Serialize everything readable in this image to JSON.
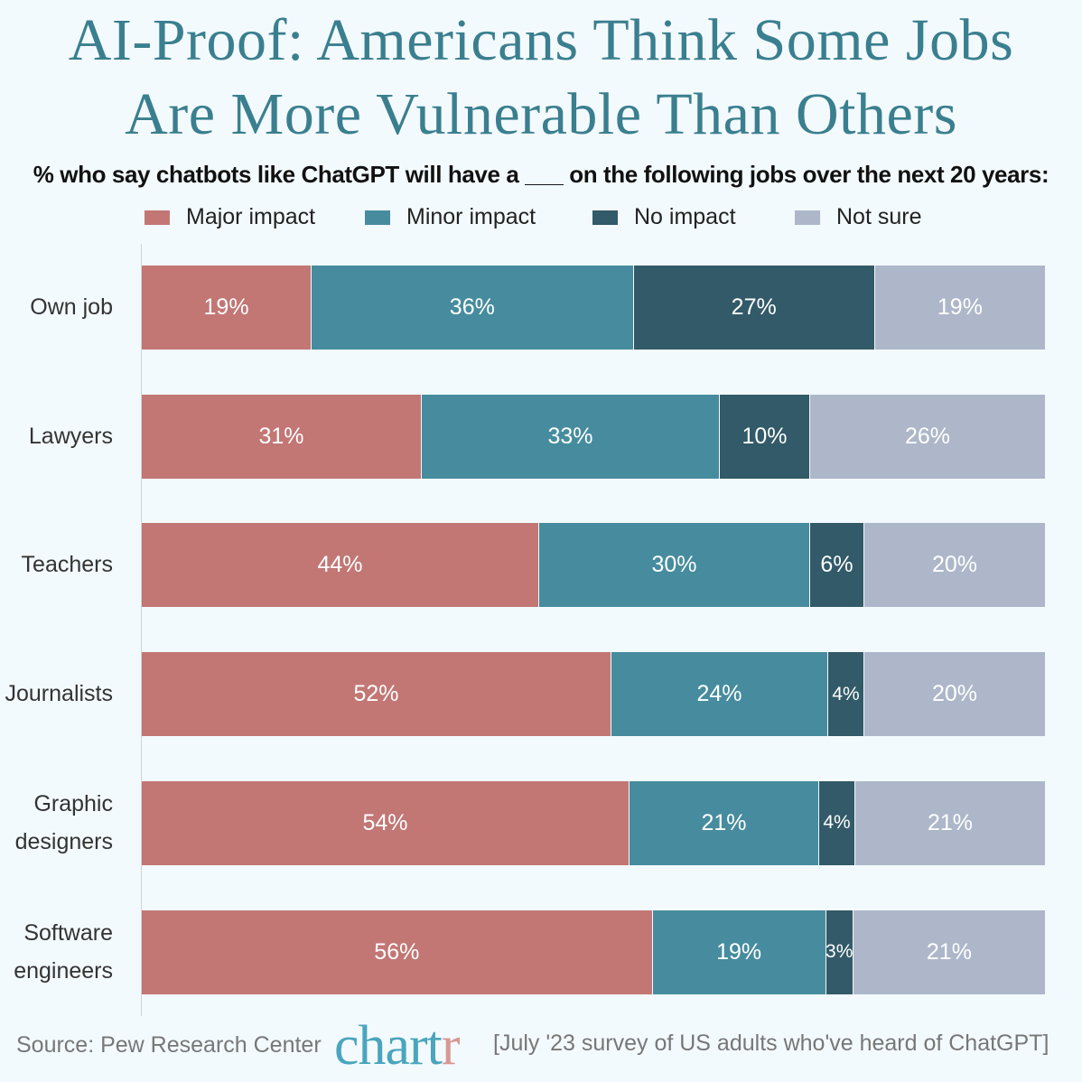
{
  "chart_data": {
    "type": "bar",
    "orientation": "horizontal-stacked",
    "title": "AI-Proof: Americans Think Some Jobs Are More Vulnerable Than Others",
    "title_lines": [
      "AI-Proof: Americans Think Some Jobs",
      "Are More Vulnerable Than Others"
    ],
    "subtitle": "% who say chatbots like ChatGPT will have a ___ on the following jobs over the next 20 years:",
    "categories": [
      "Own job",
      "Lawyers",
      "Teachers",
      "Journalists",
      "Graphic designers",
      "Software engineers"
    ],
    "category_lines": [
      [
        "Own job"
      ],
      [
        "Lawyers"
      ],
      [
        "Teachers"
      ],
      [
        "Journalists"
      ],
      [
        "Graphic",
        "designers"
      ],
      [
        "Software",
        "engineers"
      ]
    ],
    "series": [
      {
        "name": "Major impact",
        "color": "#c27775",
        "values": [
          19,
          31,
          44,
          52,
          54,
          56
        ]
      },
      {
        "name": "Minor impact",
        "color": "#468c9e",
        "values": [
          36,
          33,
          30,
          24,
          21,
          19
        ]
      },
      {
        "name": "No impact",
        "color": "#325a68",
        "values": [
          27,
          10,
          6,
          4,
          4,
          3
        ]
      },
      {
        "name": "Not sure",
        "color": "#adb7c9",
        "values": [
          19,
          26,
          20,
          20,
          21,
          21
        ]
      }
    ],
    "value_suffix": "%",
    "legend_position": "top",
    "grid": false
  },
  "footer": {
    "source": "Source: Pew Research Center",
    "logo_main": "chart",
    "logo_end": "r",
    "note": "[July '23 survey of US adults who've heard of ChatGPT]"
  }
}
